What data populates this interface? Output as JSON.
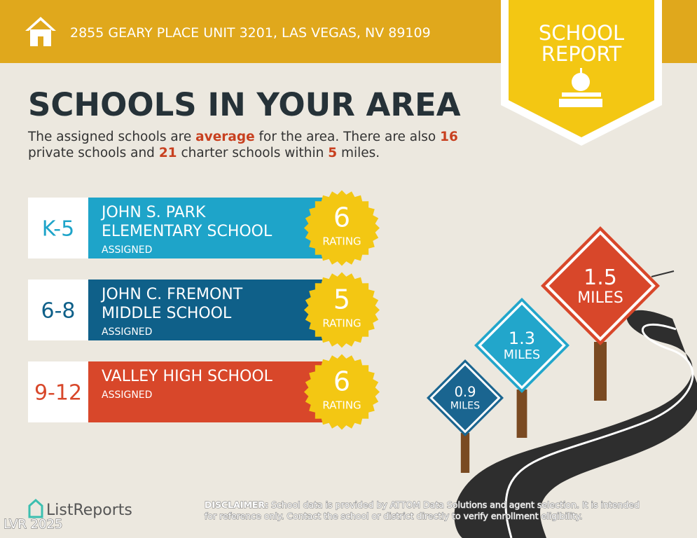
{
  "header": {
    "address": "2855 GEARY PLACE UNIT 3201, LAS VEGAS, NV 89109"
  },
  "badge": {
    "line1": "SCHOOL",
    "line2": "REPORT"
  },
  "title": "SCHOOLS IN YOUR AREA",
  "summary": {
    "line1": [
      "The assigned schools are ",
      "average",
      " for the area. There are also ",
      16
    ],
    "line2": [
      "private schools and ",
      21,
      " charter schools within ",
      5,
      " miles."
    ]
  },
  "rating_label": "RATING",
  "schools": [
    {
      "grade": "K-5",
      "name": [
        "JOHN S. PARK",
        "ELEMENTARY SCHOOL"
      ],
      "status": "ASSIGNED",
      "rating": 6,
      "color": "#1ea4c9"
    },
    {
      "grade": "6-8",
      "name": [
        "JOHN C. FREMONT",
        "MIDDLE SCHOOL"
      ],
      "status": "ASSIGNED",
      "rating": 5,
      "color": "#0f6089"
    },
    {
      "grade": "9-12",
      "name": [
        "VALLEY HIGH SCHOOL"
      ],
      "status": "ASSIGNED",
      "rating": 6,
      "color": "#d8472a"
    }
  ],
  "distances": [
    {
      "value": 0.9,
      "unit": "MILES",
      "color": "#1a6590"
    },
    {
      "value": 1.3,
      "unit": "MILES",
      "color": "#22a6cb"
    },
    {
      "value": 1.5,
      "unit": "MILES",
      "color": "#d8472a"
    }
  ],
  "footer": {
    "logo": "ListReports",
    "disclaimer_label": "DISCLAIMER:",
    "disclaimer": [
      "School data is provided by ATTOM Data Solutions and agent selection. It is intended",
      "for reference only. Contact the school or district directly to verify enrollment eligibility."
    ],
    "watermark": "LVR 2025"
  }
}
